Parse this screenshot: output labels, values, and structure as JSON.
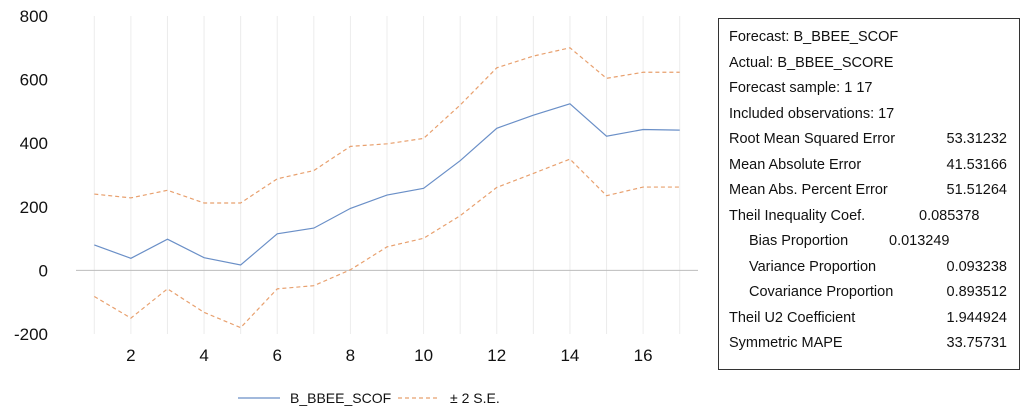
{
  "chart_data": {
    "type": "line",
    "x": [
      1,
      2,
      3,
      4,
      5,
      6,
      7,
      8,
      9,
      10,
      11,
      12,
      13,
      14,
      15,
      16,
      17
    ],
    "xticks": [
      "2",
      "4",
      "6",
      "8",
      "10",
      "12",
      "14",
      "16"
    ],
    "xtick_values": [
      2,
      4,
      6,
      8,
      10,
      12,
      14,
      16
    ],
    "yticks": [
      "800",
      "600",
      "400",
      "200",
      "0",
      "-200"
    ],
    "ytick_values": [
      800,
      600,
      400,
      200,
      0,
      -200
    ],
    "ylim": [
      -200,
      800
    ],
    "xlim": [
      1,
      17
    ],
    "grid": "vertical",
    "legend_position": "bottom",
    "series": [
      {
        "name": "B_BBEE_SCOF",
        "color": "#6a8fc7",
        "style": "solid",
        "values": [
          80,
          38,
          98,
          40,
          17,
          115,
          133,
          195,
          237,
          258,
          345,
          447,
          488,
          524,
          422,
          443,
          441
        ]
      },
      {
        "name": "± 2 S.E.",
        "color": "#e8a06e",
        "style": "dashed",
        "values": [
          240,
          228,
          252,
          212,
          212,
          288,
          314,
          390,
          398,
          415,
          520,
          637,
          674,
          700,
          604,
          623,
          623
        ]
      },
      {
        "name": "",
        "color": "#e8a06e",
        "style": "dashed",
        "values": [
          -82,
          -150,
          -58,
          -132,
          -180,
          -58,
          -48,
          2,
          74,
          101,
          172,
          261,
          305,
          350,
          235,
          262,
          262
        ]
      }
    ]
  },
  "stats": {
    "rows": [
      {
        "label": "Forecast: B_BBEE_SCOF",
        "value": ""
      },
      {
        "label": "Actual: B_BBEE_SCORE",
        "value": ""
      },
      {
        "label": "Forecast sample: 1 17",
        "value": ""
      },
      {
        "label": "Included observations: 17",
        "value": ""
      },
      {
        "label": "Root Mean Squared Error",
        "value": "53.31232"
      },
      {
        "label": "Mean Absolute Error",
        "value": "41.53166"
      },
      {
        "label": "Mean Abs. Percent Error",
        "value": "51.51264"
      },
      {
        "label": "Theil Inequality Coef.",
        "value": "0.085378"
      },
      {
        "label": "Bias Proportion",
        "value": "0.013249"
      },
      {
        "label": "Variance Proportion",
        "value": "0.093238"
      },
      {
        "label": "Covariance Proportion",
        "value": "0.893512"
      },
      {
        "label": "Theil U2 Coefficient",
        "value": "1.944924"
      },
      {
        "label": "Symmetric MAPE",
        "value": "33.75731"
      }
    ]
  }
}
